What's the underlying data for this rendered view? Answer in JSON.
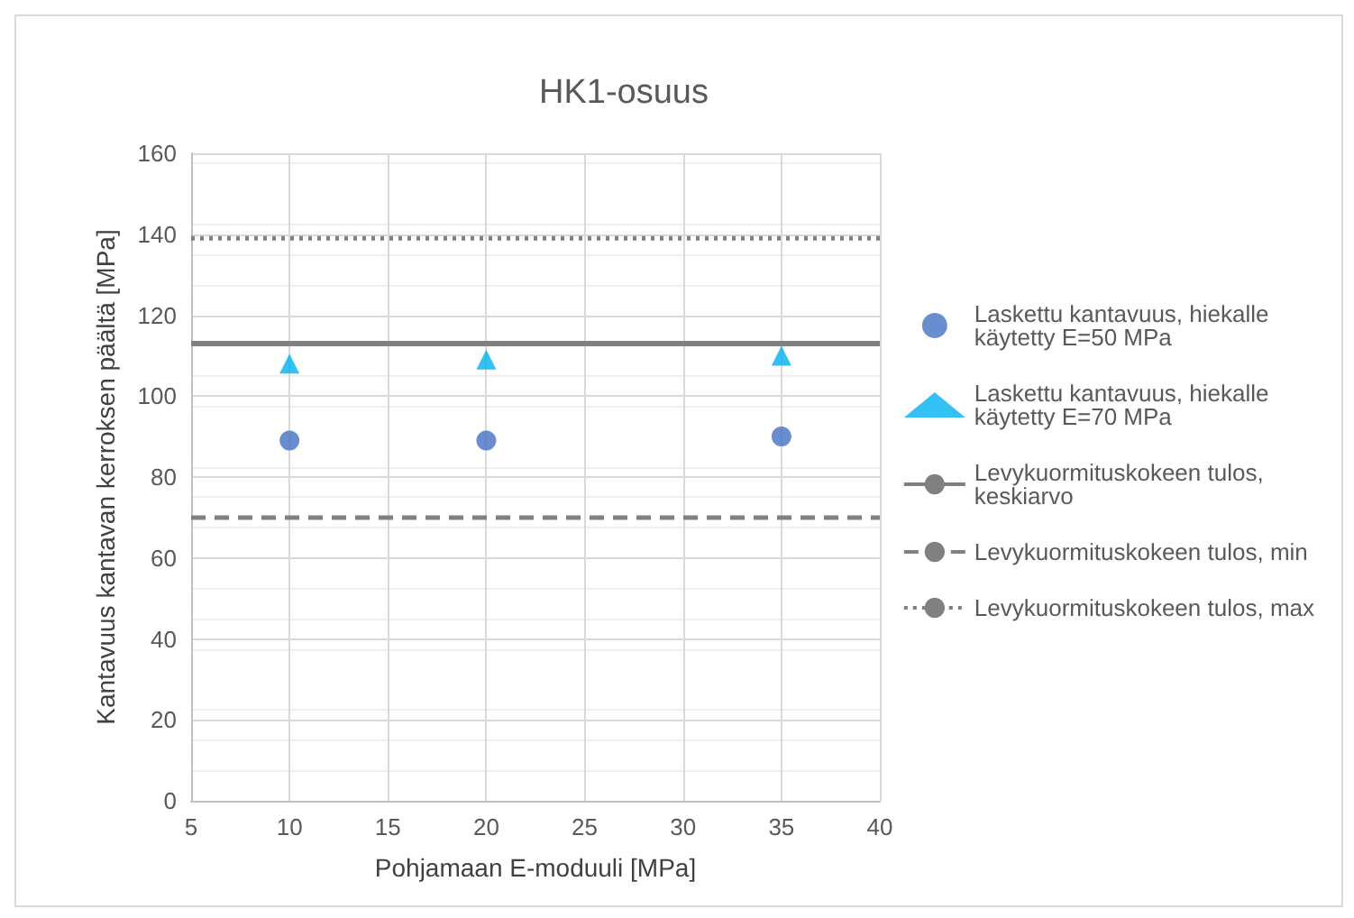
{
  "chart_data": {
    "type": "scatter",
    "title": "HK1-osuus",
    "xlabel": "Pohjamaan E-moduuli [MPa]",
    "ylabel": "Kantavuus kantavan kerroksen päältä [MPa]",
    "x": [
      10,
      20,
      35
    ],
    "series": [
      {
        "name": "Laskettu kantavuus, hiekalle käytetty E=50 MPa",
        "color": "#4472c4",
        "marker": "circle",
        "values": [
          89,
          89,
          90
        ]
      },
      {
        "name": "Laskettu kantavuus, hiekalle käytetty E=70 MPa",
        "color": "#00b0f0",
        "marker": "triangle",
        "values": [
          108,
          109,
          110
        ]
      }
    ],
    "ref_lines": [
      {
        "axis": "y",
        "value": 113,
        "label": "Levykuormituskokeen tulos, keskiarvo",
        "color": "#808080",
        "line_style": "solid"
      },
      {
        "axis": "y",
        "value": 70,
        "label": "Levykuormituskokeen tulos, min",
        "color": "#808080",
        "line_style": "dashed"
      },
      {
        "axis": "y",
        "value": 139,
        "label": "Levykuormituskokeen tulos, max",
        "color": "#808080",
        "line_style": "dotted"
      }
    ],
    "xlim": [
      5,
      40
    ],
    "xticks": [
      5,
      10,
      15,
      20,
      25,
      30,
      35,
      40
    ],
    "ylim": [
      0,
      160
    ],
    "yticks": [
      0,
      20,
      40,
      60,
      80,
      100,
      120,
      140,
      160
    ],
    "grid": true,
    "legend": "right"
  }
}
